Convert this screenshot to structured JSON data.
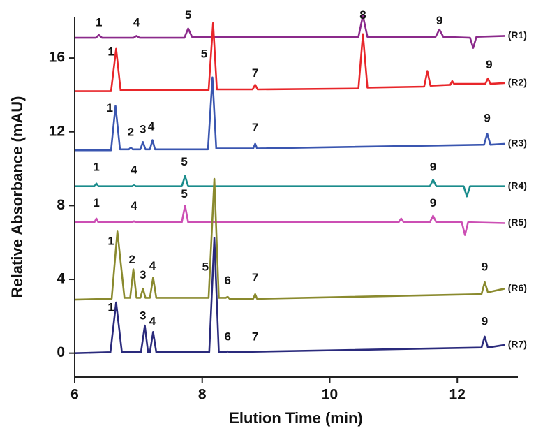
{
  "chart_data": {
    "type": "line",
    "x_label": "Elution Time (min)",
    "y_label": "Relative Absorbance (mAU)",
    "xlim": [
      6,
      12.95
    ],
    "ylim": [
      -1.3,
      18.2
    ],
    "xticks": [
      6,
      8,
      10,
      12
    ],
    "yticks": [
      0,
      4,
      8,
      12,
      16
    ],
    "series": [
      {
        "name": "(R1)",
        "color": "#8b2a8b",
        "x": [
          6.0,
          6.33,
          6.38,
          6.43,
          6.92,
          6.97,
          7.02,
          7.72,
          7.78,
          7.84,
          10.45,
          10.52,
          10.59,
          11.66,
          11.72,
          11.78,
          12.2,
          12.25,
          12.3,
          12.75
        ],
        "values": [
          17.1,
          17.1,
          17.25,
          17.1,
          17.1,
          17.2,
          17.1,
          17.1,
          17.6,
          17.15,
          17.15,
          18.3,
          17.15,
          17.15,
          17.55,
          17.15,
          17.1,
          16.55,
          17.15,
          17.2
        ]
      },
      {
        "name": "(R2)",
        "color": "#e8262a",
        "x": [
          6.0,
          6.57,
          6.65,
          6.72,
          8.1,
          8.17,
          8.23,
          8.79,
          8.83,
          8.87,
          10.45,
          10.52,
          10.59,
          11.48,
          11.53,
          11.58,
          11.89,
          11.92,
          11.95,
          12.44,
          12.48,
          12.52,
          12.75
        ],
        "values": [
          14.2,
          14.2,
          16.5,
          14.25,
          14.25,
          17.9,
          14.3,
          14.3,
          14.55,
          14.3,
          14.35,
          17.3,
          14.4,
          14.45,
          15.3,
          14.5,
          14.55,
          14.75,
          14.6,
          14.6,
          14.9,
          14.6,
          14.65
        ]
      },
      {
        "name": "(R3)",
        "color": "#3a56b0",
        "x": [
          6.0,
          6.57,
          6.64,
          6.71,
          6.85,
          6.88,
          6.91,
          7.03,
          7.07,
          7.11,
          7.18,
          7.22,
          7.26,
          8.09,
          8.16,
          8.22,
          8.8,
          8.83,
          8.86,
          12.42,
          12.47,
          12.52,
          12.75
        ],
        "values": [
          11.0,
          11.0,
          13.4,
          11.05,
          11.05,
          11.15,
          11.05,
          11.05,
          11.45,
          11.05,
          11.05,
          11.55,
          11.05,
          11.05,
          14.95,
          11.1,
          11.1,
          11.35,
          11.1,
          11.3,
          11.9,
          11.3,
          11.35
        ]
      },
      {
        "name": "(R4)",
        "color": "#1a8c8c",
        "x": [
          6.0,
          6.31,
          6.34,
          6.37,
          6.9,
          6.93,
          6.96,
          7.68,
          7.73,
          7.78,
          11.57,
          11.62,
          11.67,
          12.1,
          12.15,
          12.2,
          12.75
        ],
        "values": [
          9.05,
          9.05,
          9.2,
          9.05,
          9.05,
          9.1,
          9.05,
          9.05,
          9.6,
          9.05,
          9.05,
          9.4,
          9.05,
          9.05,
          8.5,
          9.05,
          9.05
        ]
      },
      {
        "name": "(R5)",
        "color": "#cc4fb4",
        "x": [
          6.0,
          6.31,
          6.34,
          6.37,
          6.9,
          6.93,
          6.96,
          7.68,
          7.73,
          7.78,
          11.08,
          11.12,
          11.16,
          11.57,
          11.62,
          11.67,
          12.07,
          12.12,
          12.17,
          12.75
        ],
        "values": [
          7.1,
          7.1,
          7.3,
          7.1,
          7.1,
          7.15,
          7.1,
          7.1,
          8.0,
          7.1,
          7.1,
          7.3,
          7.1,
          7.1,
          7.45,
          7.1,
          7.1,
          6.4,
          7.1,
          7.05
        ]
      },
      {
        "name": "(R6)",
        "color": "#8a8a2e",
        "x": [
          6.0,
          6.58,
          6.67,
          6.78,
          6.87,
          6.92,
          6.97,
          7.03,
          7.07,
          7.11,
          7.18,
          7.23,
          7.28,
          8.1,
          8.19,
          8.26,
          8.37,
          8.4,
          8.43,
          8.8,
          8.83,
          8.86,
          12.38,
          12.43,
          12.48,
          12.75
        ],
        "values": [
          2.9,
          2.95,
          6.6,
          3.0,
          3.0,
          4.55,
          3.0,
          3.0,
          3.5,
          3.0,
          3.0,
          4.1,
          3.0,
          3.0,
          9.45,
          3.0,
          3.0,
          3.05,
          2.95,
          2.95,
          3.2,
          2.95,
          3.2,
          3.85,
          3.3,
          3.5
        ]
      },
      {
        "name": "(R7)",
        "color": "#2a2a7c",
        "x": [
          6.0,
          6.56,
          6.65,
          6.74,
          7.04,
          7.1,
          7.15,
          7.18,
          7.23,
          7.28,
          8.11,
          8.19,
          8.26,
          8.37,
          8.4,
          8.43,
          12.38,
          12.43,
          12.48,
          12.75
        ],
        "values": [
          0.0,
          0.05,
          2.75,
          0.05,
          0.05,
          1.5,
          0.05,
          0.05,
          1.15,
          0.05,
          0.05,
          6.25,
          0.05,
          0.05,
          0.1,
          0.05,
          0.3,
          0.9,
          0.3,
          0.45
        ]
      }
    ],
    "annotations": [
      {
        "text": "1",
        "x": 6.38,
        "y": 17.9
      },
      {
        "text": "4",
        "x": 6.97,
        "y": 17.9
      },
      {
        "text": "5",
        "x": 7.78,
        "y": 18.3
      },
      {
        "text": "8",
        "x": 10.52,
        "y": 18.3
      },
      {
        "text": "9",
        "x": 11.72,
        "y": 18.0
      },
      {
        "text": "1",
        "x": 6.57,
        "y": 16.3
      },
      {
        "text": "5",
        "x": 8.03,
        "y": 16.2
      },
      {
        "text": "7",
        "x": 8.83,
        "y": 15.15
      },
      {
        "text": "9",
        "x": 12.5,
        "y": 15.6
      },
      {
        "text": "1",
        "x": 6.55,
        "y": 13.25
      },
      {
        "text": "2",
        "x": 6.88,
        "y": 11.95
      },
      {
        "text": "3",
        "x": 7.07,
        "y": 12.1
      },
      {
        "text": "4",
        "x": 7.2,
        "y": 12.25
      },
      {
        "text": "7",
        "x": 8.83,
        "y": 12.2
      },
      {
        "text": "9",
        "x": 12.47,
        "y": 12.7
      },
      {
        "text": "1",
        "x": 6.34,
        "y": 10.05
      },
      {
        "text": "4",
        "x": 6.93,
        "y": 9.9
      },
      {
        "text": "5",
        "x": 7.72,
        "y": 10.35
      },
      {
        "text": "9",
        "x": 11.62,
        "y": 10.05
      },
      {
        "text": "1",
        "x": 6.34,
        "y": 8.1
      },
      {
        "text": "4",
        "x": 6.93,
        "y": 7.95
      },
      {
        "text": "5",
        "x": 7.72,
        "y": 8.6
      },
      {
        "text": "9",
        "x": 11.62,
        "y": 8.1
      },
      {
        "text": "1",
        "x": 6.57,
        "y": 6.05
      },
      {
        "text": "2",
        "x": 6.9,
        "y": 5.05
      },
      {
        "text": "3",
        "x": 7.07,
        "y": 4.2
      },
      {
        "text": "4",
        "x": 7.22,
        "y": 4.7
      },
      {
        "text": "5",
        "x": 8.05,
        "y": 4.65
      },
      {
        "text": "6",
        "x": 8.4,
        "y": 3.9
      },
      {
        "text": "7",
        "x": 8.83,
        "y": 4.05
      },
      {
        "text": "9",
        "x": 12.43,
        "y": 4.65
      },
      {
        "text": "1",
        "x": 6.57,
        "y": 2.45
      },
      {
        "text": "3",
        "x": 7.07,
        "y": 2.0
      },
      {
        "text": "4",
        "x": 7.22,
        "y": 1.7
      },
      {
        "text": "6",
        "x": 8.4,
        "y": 0.85
      },
      {
        "text": "7",
        "x": 8.83,
        "y": 0.85
      },
      {
        "text": "9",
        "x": 12.43,
        "y": 1.7
      }
    ]
  }
}
